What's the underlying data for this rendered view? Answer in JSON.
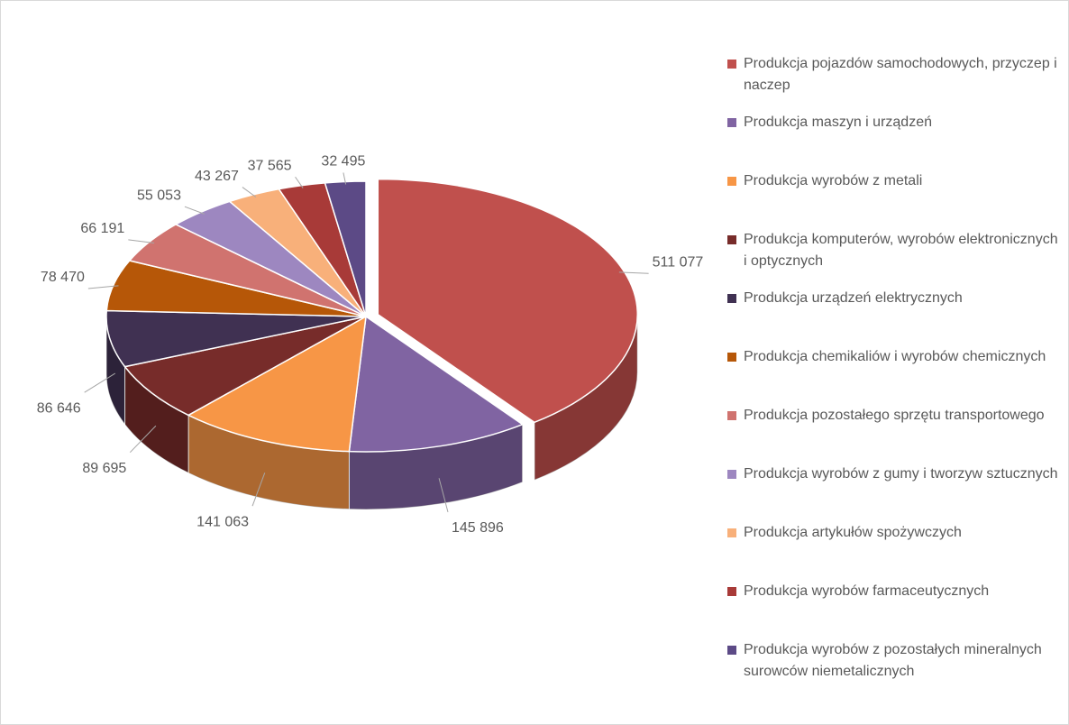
{
  "chart_data": {
    "type": "pie",
    "categories": [
      "Produkcja pojazdów samochodowych, przyczep i naczep",
      "Produkcja maszyn i urządzeń",
      "Produkcja wyrobów z metali",
      "Produkcja komputerów, wyrobów elektronicznych i optycznych",
      "Produkcja urządzeń elektrycznych",
      "Produkcja chemikaliów i wyrobów chemicznych",
      "Produkcja pozostałego sprzętu transportowego",
      "Produkcja wyrobów z gumy i tworzyw sztucznych",
      "Produkcja artykułów spożywczych",
      "Produkcja wyrobów farmaceutycznych",
      "Produkcja wyrobów z pozostałych mineralnych surowców niemetalicznych"
    ],
    "values": [
      511077,
      145896,
      141063,
      89695,
      86646,
      78470,
      66191,
      55053,
      43267,
      37565,
      32495
    ],
    "value_labels": [
      "511 077",
      "145 896",
      "141 063",
      "89 695",
      "86 646",
      "78 470",
      "66 191",
      "55 053",
      "43 267",
      "37 565",
      "32 495"
    ],
    "colors": [
      "#c0504d",
      "#8064a2",
      "#f79646",
      "#772c2a",
      "#403152",
      "#b65708",
      "#d0736f",
      "#9d87c0",
      "#f8b07a",
      "#a83a38",
      "#5c4a86"
    ],
    "legend": "right"
  }
}
